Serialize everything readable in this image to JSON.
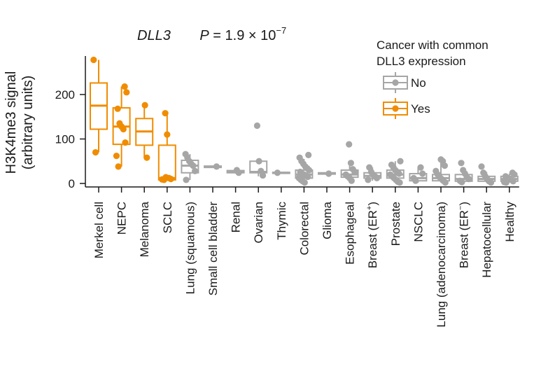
{
  "chart_data": {
    "type": "box",
    "title": {
      "gene": "DLL3",
      "p_label": "P",
      "p_text": " = 1.9 × 10",
      "p_exponent": "−7"
    },
    "ylabel_line1": "H3K4me3 signal",
    "ylabel_line2": "(arbitrary units)",
    "yticks": [
      0,
      100,
      200
    ],
    "ylim": [
      -8,
      290
    ],
    "legend": {
      "title_line1": "Cancer with common",
      "title_line2": "DLL3 expression",
      "entries": [
        {
          "label": "No",
          "color": "#a6a6a6"
        },
        {
          "label": "Yes",
          "color": "#f08c00"
        }
      ]
    },
    "colors": {
      "yes": "#f08c00",
      "no": "#a6a6a6"
    },
    "groups": [
      {
        "name": "Merkel cell",
        "sup": "",
        "common": true,
        "q1": 122,
        "median": 175,
        "q3": 226,
        "whisker_low": 70,
        "whisker_high": 278,
        "points": [
          278,
          70
        ]
      },
      {
        "name": "NEPC",
        "sup": "",
        "common": true,
        "q1": 88,
        "median": 128,
        "q3": 170,
        "whisker_low": 38,
        "whisker_high": 218,
        "points": [
          218,
          205,
          168,
          135,
          128,
          122,
          92,
          62,
          38
        ]
      },
      {
        "name": "Melanoma",
        "sup": "",
        "common": true,
        "q1": 86,
        "median": 117,
        "q3": 146,
        "whisker_low": 58,
        "whisker_high": 176,
        "points": [
          176,
          58
        ]
      },
      {
        "name": "SCLC",
        "sup": "",
        "common": true,
        "q1": 8,
        "median": 12,
        "q3": 86,
        "whisker_low": 6,
        "whisker_high": 158,
        "points": [
          158,
          110,
          12,
          10,
          9,
          8,
          14
        ]
      },
      {
        "name": "Lung (squamous)",
        "sup": "",
        "common": false,
        "q1": 24,
        "median": 40,
        "q3": 52,
        "whisker_low": 8,
        "whisker_high": 66,
        "points": [
          66,
          58,
          50,
          44,
          40,
          28,
          8
        ]
      },
      {
        "name": "Small cell bladder",
        "sup": "",
        "common": false,
        "q1": 36,
        "median": 38,
        "q3": 39,
        "whisker_low": 36,
        "whisker_high": 39,
        "points": [
          38
        ]
      },
      {
        "name": "Renal",
        "sup": "",
        "common": false,
        "q1": 24,
        "median": 26,
        "q3": 29,
        "whisker_low": 22,
        "whisker_high": 31,
        "points": [
          30,
          24
        ]
      },
      {
        "name": "Ovarian",
        "sup": "",
        "common": false,
        "q1": 24,
        "median": 26,
        "q3": 50,
        "whisker_low": 16,
        "whisker_high": 52,
        "points": [
          130,
          50,
          28,
          18
        ]
      },
      {
        "name": "Thymic",
        "sup": "",
        "common": false,
        "q1": 23,
        "median": 24,
        "q3": 25,
        "whisker_low": 23,
        "whisker_high": 25,
        "points": [
          24
        ]
      },
      {
        "name": "Colorectal",
        "sup": "",
        "common": false,
        "q1": 12,
        "median": 20,
        "q3": 30,
        "whisker_low": 2,
        "whisker_high": 55,
        "points": [
          64,
          58,
          50,
          44,
          38,
          34,
          30,
          26,
          22,
          20,
          18,
          15,
          12,
          8,
          5,
          2
        ]
      },
      {
        "name": "Glioma",
        "sup": "",
        "common": false,
        "q1": 21,
        "median": 22,
        "q3": 24,
        "whisker_low": 21,
        "whisker_high": 24,
        "points": [
          22
        ]
      },
      {
        "name": "Esophageal",
        "sup": "",
        "common": false,
        "q1": 14,
        "median": 20,
        "q3": 30,
        "whisker_low": 6,
        "whisker_high": 46,
        "points": [
          88,
          46,
          32,
          26,
          20,
          16,
          12,
          6
        ]
      },
      {
        "name": "Breast (ER",
        "sup": "+",
        "common": false,
        "q1": 12,
        "median": 17,
        "q3": 24,
        "whisker_low": 6,
        "whisker_high": 36,
        "points": [
          36,
          26,
          20,
          16,
          12,
          8
        ]
      },
      {
        "name": "Prostate",
        "sup": "",
        "common": false,
        "q1": 12,
        "median": 20,
        "q3": 30,
        "whisker_low": 2,
        "whisker_high": 50,
        "points": [
          50,
          42,
          36,
          30,
          26,
          22,
          20,
          16,
          12,
          8,
          4,
          2
        ]
      },
      {
        "name": "NSCLC",
        "sup": "",
        "common": false,
        "q1": 6,
        "median": 12,
        "q3": 22,
        "whisker_low": 2,
        "whisker_high": 36,
        "points": [
          36,
          22,
          12,
          6
        ]
      },
      {
        "name": "Lung (adenocarcinoma)",
        "sup": "",
        "common": false,
        "q1": 6,
        "median": 12,
        "q3": 20,
        "whisker_low": 2,
        "whisker_high": 52,
        "points": [
          54,
          50,
          40,
          28,
          20,
          14,
          10,
          6,
          2
        ]
      },
      {
        "name": "Breast (ER",
        "sup": "−",
        "common": false,
        "q1": 5,
        "median": 10,
        "q3": 20,
        "whisker_low": 2,
        "whisker_high": 30,
        "points": [
          46,
          30,
          22,
          14,
          10,
          6,
          3
        ]
      },
      {
        "name": "Hepatocellular",
        "sup": "",
        "common": false,
        "q1": 5,
        "median": 10,
        "q3": 16,
        "whisker_low": 2,
        "whisker_high": 26,
        "points": [
          38,
          24,
          16,
          10,
          5,
          2
        ]
      },
      {
        "name": "Healthy",
        "sup": "",
        "common": false,
        "q1": 5,
        "median": 10,
        "q3": 16,
        "whisker_low": 2,
        "whisker_high": 22,
        "points": [
          24,
          20,
          16,
          12,
          10,
          8,
          5,
          3,
          2
        ]
      }
    ]
  }
}
